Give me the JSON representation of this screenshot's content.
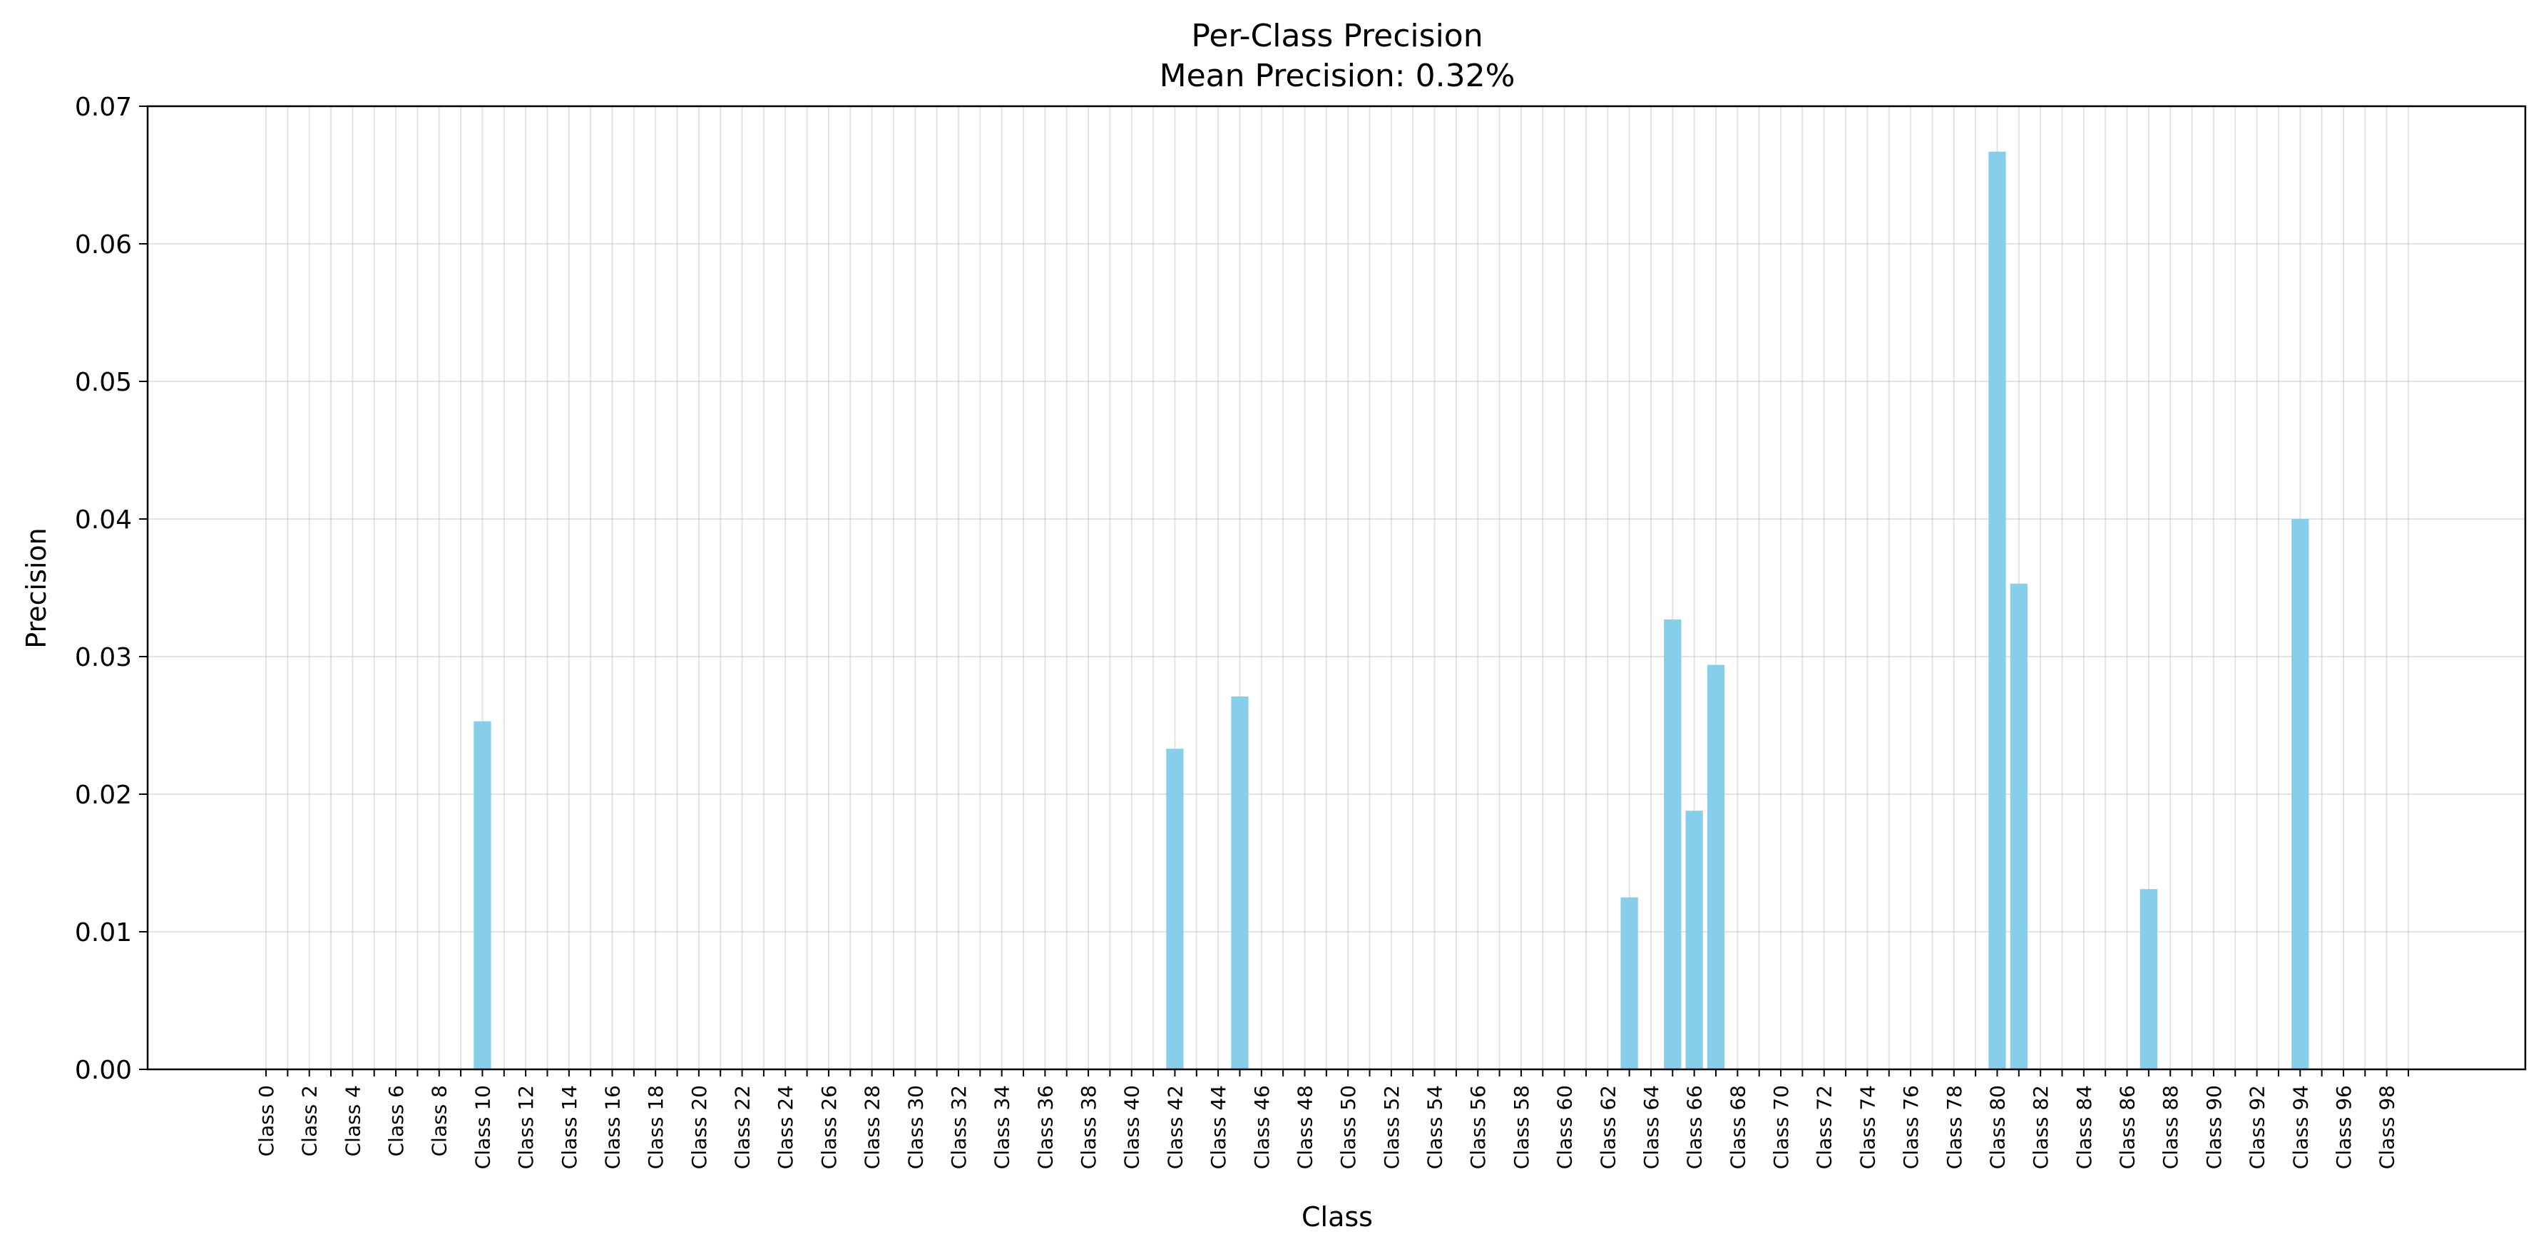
{
  "chart_data": {
    "type": "bar",
    "title": "Per-Class Precision",
    "subtitle": "Mean Precision: 0.32%",
    "xlabel": "Class",
    "ylabel": "Precision",
    "ylim": [
      0,
      0.07
    ],
    "yticks": [
      0.0,
      0.01,
      0.02,
      0.03,
      0.04,
      0.05,
      0.06,
      0.07
    ],
    "ytick_labels": [
      "0.00",
      "0.01",
      "0.02",
      "0.03",
      "0.04",
      "0.05",
      "0.06",
      "0.07"
    ],
    "grid": true,
    "bar_color": "#87CEEB",
    "categories": [
      "Class 0",
      "Class 1",
      "Class 2",
      "Class 3",
      "Class 4",
      "Class 5",
      "Class 6",
      "Class 7",
      "Class 8",
      "Class 9",
      "Class 10",
      "Class 11",
      "Class 12",
      "Class 13",
      "Class 14",
      "Class 15",
      "Class 16",
      "Class 17",
      "Class 18",
      "Class 19",
      "Class 20",
      "Class 21",
      "Class 22",
      "Class 23",
      "Class 24",
      "Class 25",
      "Class 26",
      "Class 27",
      "Class 28",
      "Class 29",
      "Class 30",
      "Class 31",
      "Class 32",
      "Class 33",
      "Class 34",
      "Class 35",
      "Class 36",
      "Class 37",
      "Class 38",
      "Class 39",
      "Class 40",
      "Class 41",
      "Class 42",
      "Class 43",
      "Class 44",
      "Class 45",
      "Class 46",
      "Class 47",
      "Class 48",
      "Class 49",
      "Class 50",
      "Class 51",
      "Class 52",
      "Class 53",
      "Class 54",
      "Class 55",
      "Class 56",
      "Class 57",
      "Class 58",
      "Class 59",
      "Class 60",
      "Class 61",
      "Class 62",
      "Class 63",
      "Class 64",
      "Class 65",
      "Class 66",
      "Class 67",
      "Class 68",
      "Class 69",
      "Class 70",
      "Class 71",
      "Class 72",
      "Class 73",
      "Class 74",
      "Class 75",
      "Class 76",
      "Class 77",
      "Class 78",
      "Class 79",
      "Class 80",
      "Class 81",
      "Class 82",
      "Class 83",
      "Class 84",
      "Class 85",
      "Class 86",
      "Class 87",
      "Class 88",
      "Class 89",
      "Class 90",
      "Class 91",
      "Class 92",
      "Class 93",
      "Class 94",
      "Class 95",
      "Class 96",
      "Class 97",
      "Class 98",
      "Class 99"
    ],
    "values": [
      0,
      0,
      0,
      0,
      0,
      0,
      0,
      0,
      0,
      0,
      0.0253,
      0,
      0,
      0,
      0,
      0,
      0,
      0,
      0,
      0,
      0,
      0,
      0,
      0,
      0,
      0,
      0,
      0,
      0,
      0,
      0,
      0,
      0,
      0,
      0,
      0,
      0,
      0,
      0,
      0,
      0,
      0,
      0.0233,
      0,
      0,
      0.0271,
      0,
      0,
      0,
      0,
      0,
      0,
      0,
      0,
      0,
      0,
      0,
      0,
      0,
      0,
      0,
      0,
      0,
      0.0125,
      0,
      0.0327,
      0.0188,
      0.0294,
      0,
      0,
      0,
      0,
      0,
      0,
      0,
      0,
      0,
      0,
      0,
      0,
      0.0667,
      0.0353,
      0,
      0,
      0,
      0,
      0,
      0.0131,
      0,
      0,
      0,
      0,
      0,
      0,
      0.04,
      0,
      0,
      0,
      0,
      0
    ],
    "xtick_step": 2
  }
}
